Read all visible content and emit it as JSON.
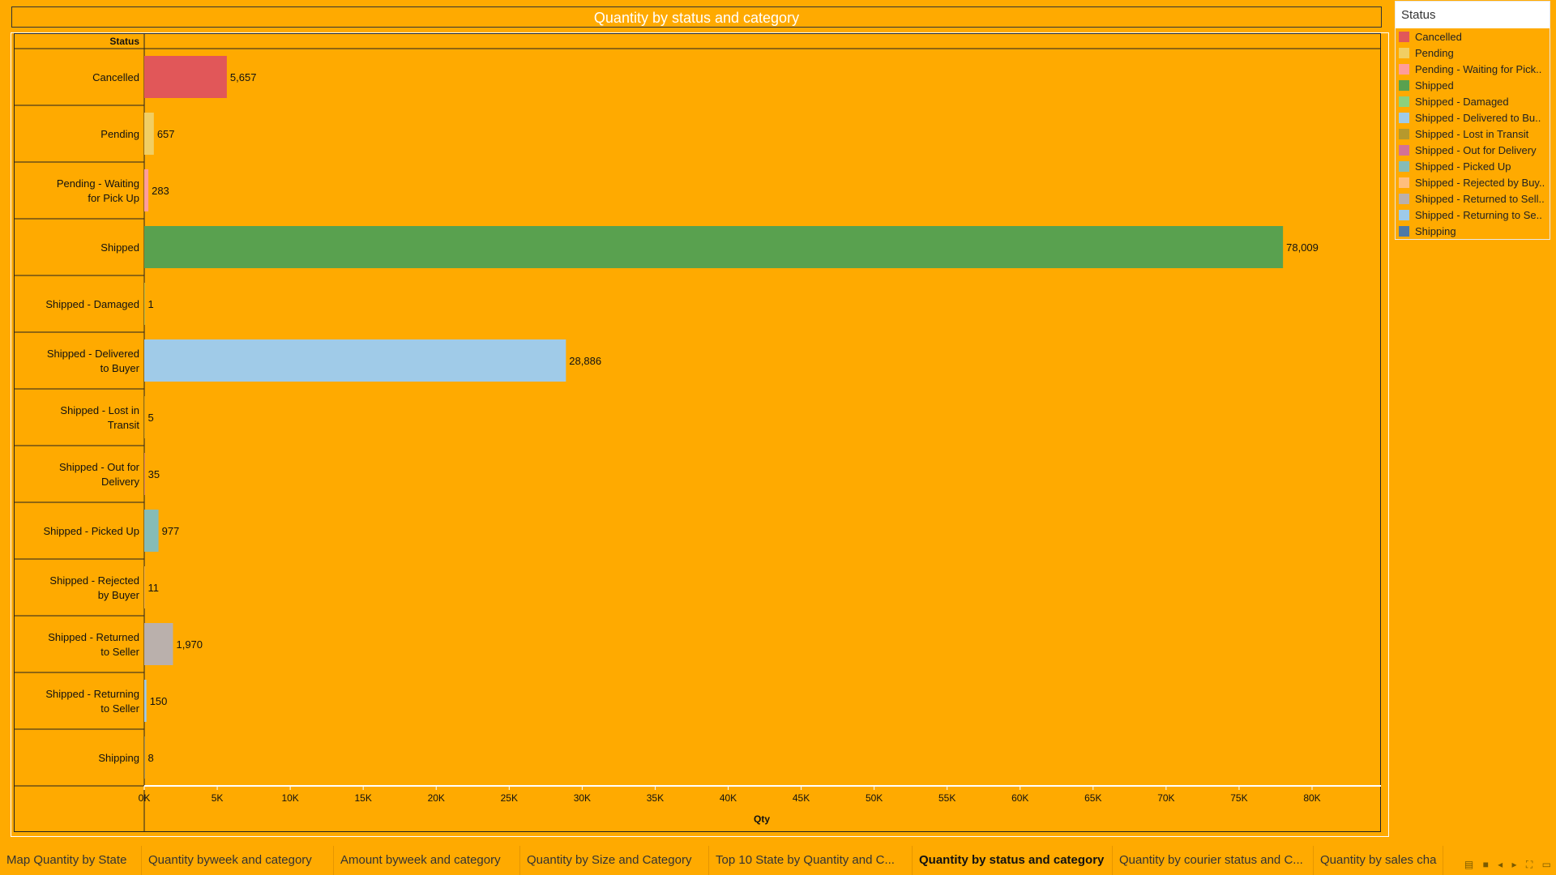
{
  "chart_data": {
    "type": "bar",
    "orientation": "horizontal",
    "title": "Quantity by status and category",
    "row_header": "Status",
    "xlabel": "Qty",
    "xlim": [
      0,
      85000
    ],
    "x_ticks": [
      "0K",
      "5K",
      "10K",
      "15K",
      "20K",
      "25K",
      "30K",
      "35K",
      "40K",
      "45K",
      "50K",
      "55K",
      "60K",
      "65K",
      "70K",
      "75K",
      "80K"
    ],
    "x_tick_values": [
      0,
      5000,
      10000,
      15000,
      20000,
      25000,
      30000,
      35000,
      40000,
      45000,
      50000,
      55000,
      60000,
      65000,
      70000,
      75000,
      80000
    ],
    "categories": [
      "Cancelled",
      "Pending",
      "Pending - Waiting for Pick Up",
      "Shipped",
      "Shipped - Damaged",
      "Shipped - Delivered to Buyer",
      "Shipped - Lost in Transit",
      "Shipped - Out for Delivery",
      "Shipped - Picked Up",
      "Shipped - Rejected by Buyer",
      "Shipped - Returned to Seller",
      "Shipped - Returning to Seller",
      "Shipping"
    ],
    "values": [
      5657,
      657,
      283,
      78009,
      1,
      28886,
      5,
      35,
      977,
      11,
      1970,
      150,
      8
    ],
    "value_labels": [
      "5,657",
      "657",
      "283",
      "78,009",
      "1",
      "28,886",
      "5",
      "35",
      "977",
      "11",
      "1,970",
      "150",
      "8"
    ],
    "colors": [
      "#e15759",
      "#f1ce63",
      "#ff9d9a",
      "#59a14f",
      "#8cd17d",
      "#a0cbe8",
      "#b6992d",
      "#d37295",
      "#86bcb6",
      "#ffbe7d",
      "#bab0ac",
      "#9ecae9",
      "#4e79a7"
    ]
  },
  "legend": {
    "title": "Status",
    "items": [
      {
        "label": "Cancelled",
        "color": "#e15759"
      },
      {
        "label": "Pending",
        "color": "#f1ce63"
      },
      {
        "label": "Pending - Waiting for Pick..",
        "color": "#ff9d9a"
      },
      {
        "label": "Shipped",
        "color": "#59a14f"
      },
      {
        "label": "Shipped - Damaged",
        "color": "#8cd17d"
      },
      {
        "label": "Shipped - Delivered to Bu..",
        "color": "#a0cbe8"
      },
      {
        "label": "Shipped - Lost in Transit",
        "color": "#b6992d"
      },
      {
        "label": "Shipped - Out for Delivery",
        "color": "#d37295"
      },
      {
        "label": "Shipped - Picked Up",
        "color": "#86bcb6"
      },
      {
        "label": "Shipped - Rejected by Buy..",
        "color": "#ffbe7d"
      },
      {
        "label": "Shipped - Returned to Sell..",
        "color": "#bab0ac"
      },
      {
        "label": "Shipped - Returning to Se..",
        "color": "#9ecae9"
      },
      {
        "label": "Shipping",
        "color": "#4e79a7"
      }
    ]
  },
  "tabs": [
    {
      "label": "Map Quantity by State"
    },
    {
      "label": "Quantity byweek and category"
    },
    {
      "label": "Amount byweek and category"
    },
    {
      "label": "Quantity by Size and Category"
    },
    {
      "label": "Top 10 State by Quantity and C..."
    },
    {
      "label": "Quantity by status and category",
      "active": true
    },
    {
      "label": "Quantity by courier status and C..."
    },
    {
      "label": "Quantity by sales cha"
    }
  ],
  "colors": {
    "background": "#ffaa00",
    "title_text": "#ffffff"
  }
}
